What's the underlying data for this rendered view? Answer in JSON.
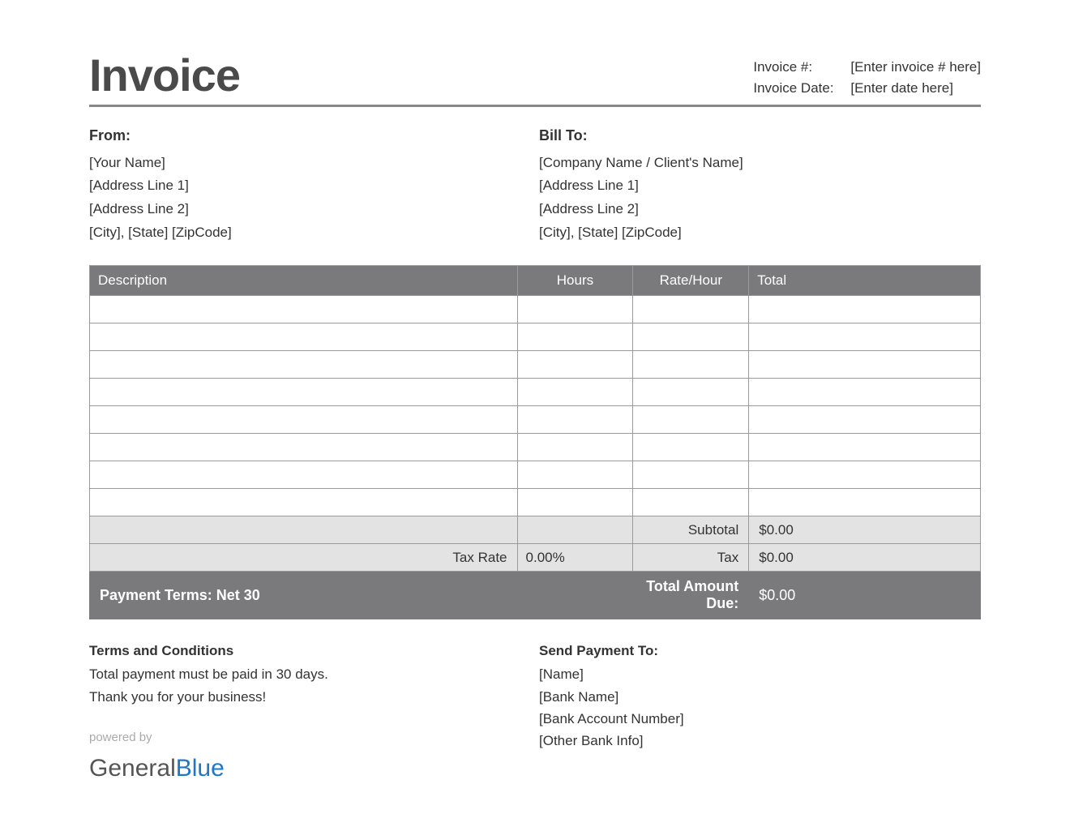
{
  "title": "Invoice",
  "meta": {
    "invoice_num_label": "Invoice #:",
    "invoice_num_value": "[Enter invoice # here]",
    "invoice_date_label": "Invoice Date:",
    "invoice_date_value": "[Enter date here]"
  },
  "from": {
    "heading": "From:",
    "name": "[Your Name]",
    "addr1": "[Address Line 1]",
    "addr2": "[Address Line 2]",
    "city": "[City], [State] [ZipCode]"
  },
  "billto": {
    "heading": "Bill To:",
    "name": "[Company Name / Client's Name]",
    "addr1": "[Address Line 1]",
    "addr2": "[Address Line 2]",
    "city": "[City], [State] [ZipCode]"
  },
  "table": {
    "columns": [
      "Description",
      "Hours",
      "Rate/Hour",
      "Total"
    ],
    "row_count": 8,
    "header_bg": "#7a7a7d",
    "header_fg": "#ffffff",
    "border_color": "#9a9a9a",
    "summary_bg": "#e3e3e3"
  },
  "summary": {
    "subtotal_label": "Subtotal",
    "subtotal_value": "$0.00",
    "taxrate_label": "Tax Rate",
    "taxrate_value": "0.00%",
    "tax_label": "Tax",
    "tax_value": "$0.00"
  },
  "footer_bar": {
    "payment_terms": "Payment Terms: Net 30",
    "total_due_label": "Total Amount Due:",
    "total_due_value": "$0.00"
  },
  "terms": {
    "heading": "Terms and Conditions",
    "line1": "Total payment must be paid in 30 days.",
    "line2": "Thank you for your business!"
  },
  "payment": {
    "heading": "Send Payment To:",
    "name": "[Name]",
    "bank": "[Bank Name]",
    "acct": "[Bank Account Number]",
    "other": "[Other Bank Info]"
  },
  "powered": {
    "text": "powered by",
    "logo1": "General",
    "logo2": "Blue"
  },
  "colors": {
    "title": "#4a4a4a",
    "text": "#333333",
    "rule": "#888888",
    "logo_gray": "#555555",
    "logo_blue": "#1f77c9"
  }
}
